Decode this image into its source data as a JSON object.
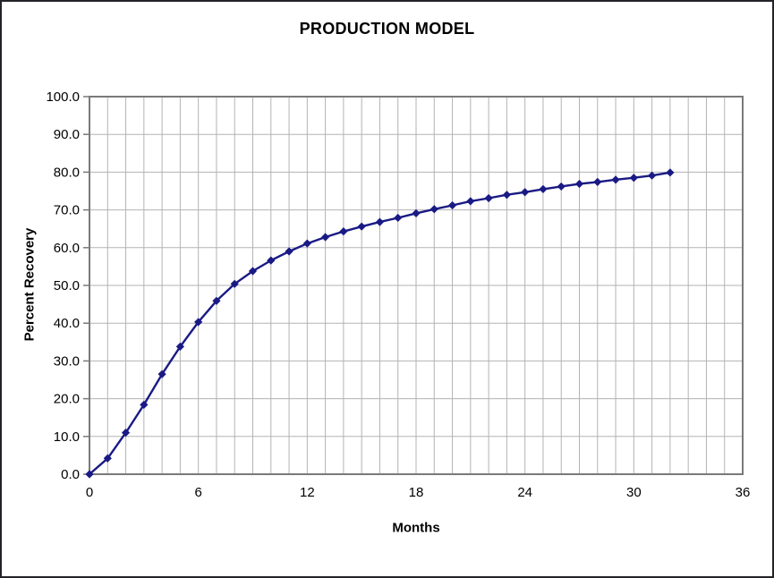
{
  "chart_data": {
    "type": "line",
    "title": "PRODUCTION MODEL",
    "xlabel": "Months",
    "ylabel": "Percent Recovery",
    "x": [
      0,
      1,
      2,
      3,
      4,
      5,
      6,
      7,
      8,
      9,
      10,
      11,
      12,
      13,
      14,
      15,
      16,
      17,
      18,
      19,
      20,
      21,
      22,
      23,
      24,
      25,
      26,
      27,
      28,
      29,
      30,
      31,
      32
    ],
    "y": [
      0.0,
      4.2,
      11.0,
      18.4,
      26.5,
      33.8,
      40.3,
      45.9,
      50.4,
      53.8,
      56.6,
      59.0,
      61.1,
      62.8,
      64.3,
      65.6,
      66.8,
      67.9,
      69.1,
      70.2,
      71.2,
      72.3,
      73.1,
      74.0,
      74.7,
      75.5,
      76.2,
      76.9,
      77.4,
      78.0,
      78.5,
      79.1,
      79.9
    ],
    "xlim": [
      0,
      36
    ],
    "ylim": [
      0,
      100
    ],
    "x_minor_grid_step": 1,
    "x_tick_values": [
      0,
      6,
      12,
      18,
      24,
      30,
      36
    ],
    "x_tick_labels": [
      "0",
      "6",
      "12",
      "18",
      "24",
      "30",
      "36"
    ],
    "y_tick_values": [
      0,
      10,
      20,
      30,
      40,
      50,
      60,
      70,
      80,
      90,
      100
    ],
    "y_tick_labels": [
      "0.0",
      "10.0",
      "20.0",
      "30.0",
      "40.0",
      "50.0",
      "60.0",
      "70.0",
      "80.0",
      "90.0",
      "100.0"
    ],
    "grid": "on",
    "legend": "none",
    "marker": "diamond",
    "line_color": "#1a1a85",
    "marker_color": "#1a1a85",
    "grid_color": "#b3b3b3",
    "axis_color": "#7a7a7a",
    "text_color": "#000000",
    "frame_border_color": "#232329"
  }
}
